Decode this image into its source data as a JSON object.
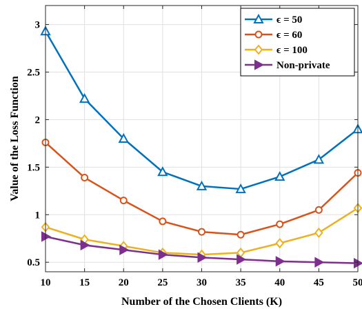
{
  "chart_data": {
    "type": "line",
    "title": "",
    "xlabel": "Number of the Chosen Clients (K)",
    "ylabel": "Value of the Loss Function",
    "x": [
      10,
      15,
      20,
      25,
      30,
      35,
      40,
      45,
      50
    ],
    "xlim": [
      10,
      50
    ],
    "ylim": [
      0.4,
      3.2
    ],
    "xticks": [
      "10",
      "15",
      "20",
      "25",
      "30",
      "35",
      "40",
      "45",
      "50"
    ],
    "yticks": [
      "0.5",
      "1",
      "1.5",
      "2",
      "2.5",
      "3"
    ],
    "xtick_values": [
      10,
      15,
      20,
      25,
      30,
      35,
      40,
      45,
      50
    ],
    "ytick_values": [
      0.5,
      1,
      1.5,
      2,
      2.5,
      3
    ],
    "grid": true,
    "legend_position": "top-right",
    "series": [
      {
        "name": "ϵ =  50",
        "color": "#0072BD",
        "marker": "triangle-up",
        "values": [
          2.93,
          2.22,
          1.8,
          1.45,
          1.3,
          1.27,
          1.4,
          1.58,
          1.9
        ]
      },
      {
        "name": "ϵ =  60",
        "color": "#D95319",
        "marker": "circle",
        "values": [
          1.76,
          1.39,
          1.15,
          0.93,
          0.82,
          0.79,
          0.9,
          1.05,
          1.44
        ]
      },
      {
        "name": "ϵ = 100",
        "color": "#EDB120",
        "marker": "diamond",
        "values": [
          0.87,
          0.74,
          0.67,
          0.6,
          0.58,
          0.6,
          0.7,
          0.81,
          1.07
        ]
      },
      {
        "name": "Non-private",
        "color": "#7E2F8E",
        "marker": "triangle-right",
        "values": [
          0.77,
          0.68,
          0.63,
          0.58,
          0.55,
          0.53,
          0.51,
          0.5,
          0.49
        ]
      }
    ]
  }
}
